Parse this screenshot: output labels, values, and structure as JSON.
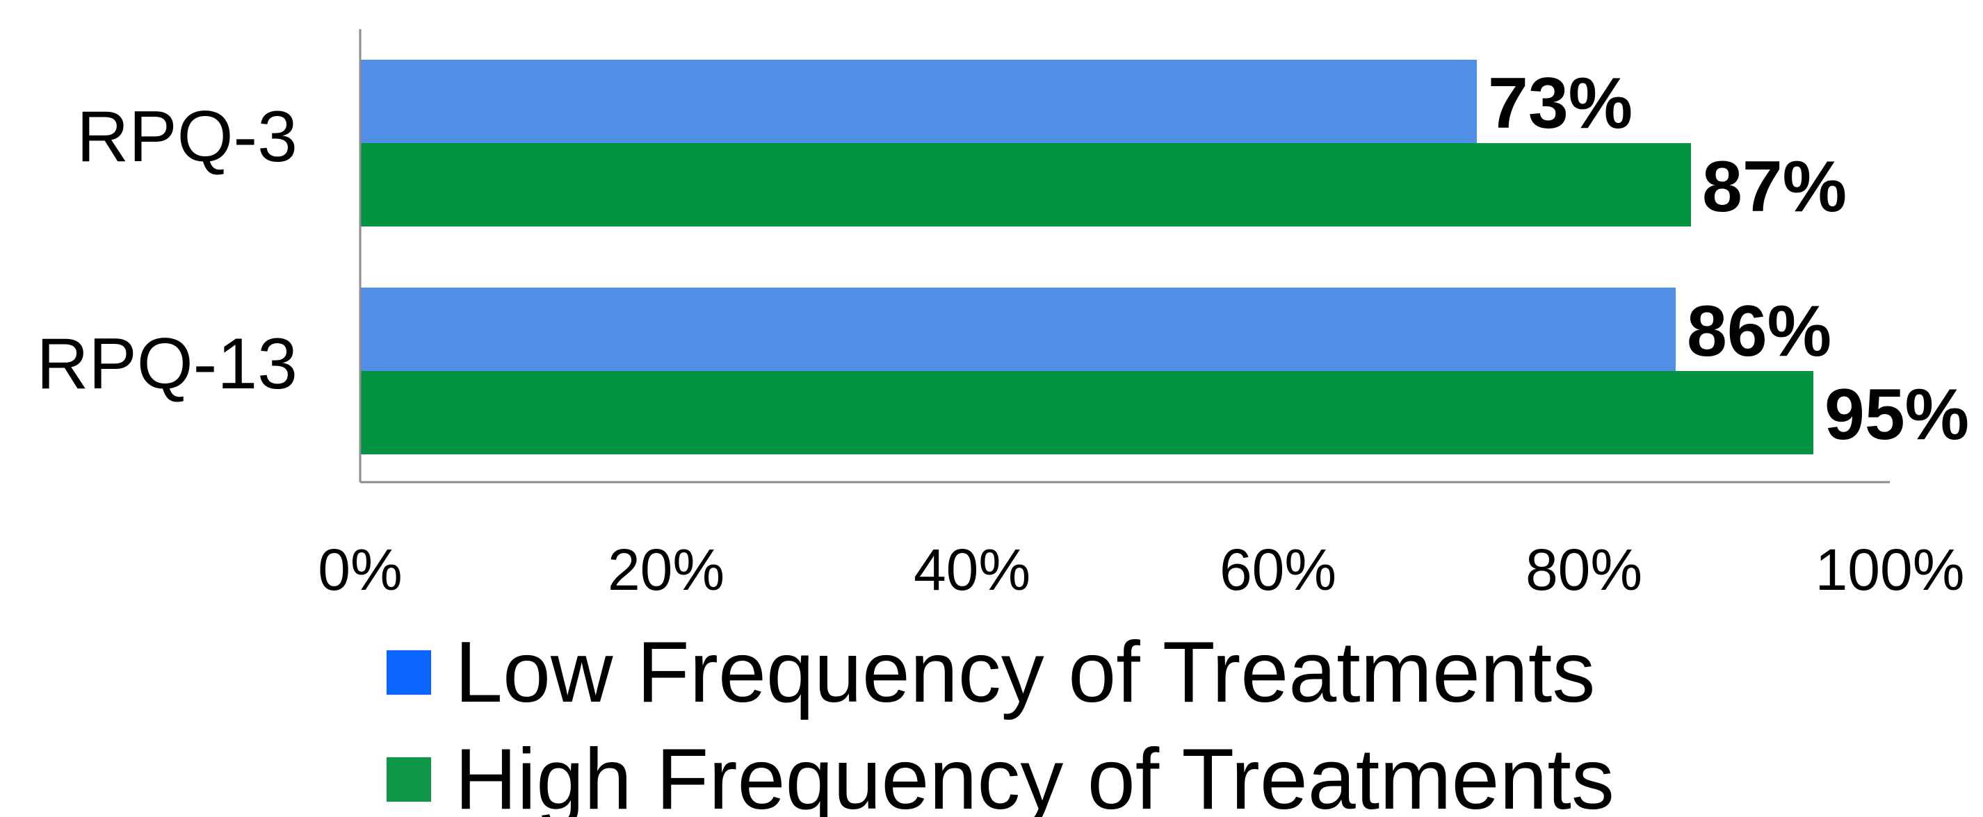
{
  "chart_data": {
    "type": "bar",
    "orientation": "horizontal",
    "categories": [
      "RPQ-3",
      "RPQ-13"
    ],
    "series": [
      {
        "name": "Low Frequency of Treatments",
        "values": [
          73,
          86
        ],
        "labels": [
          "73%",
          "86%"
        ],
        "color": "#518fe6"
      },
      {
        "name": "High Frequency of Treatments",
        "values": [
          87,
          95
        ],
        "labels": [
          "87%",
          "95%"
        ],
        "color": "#039443"
      }
    ],
    "x_ticks": [
      0,
      20,
      40,
      60,
      80,
      100
    ],
    "x_tick_labels": [
      "0%",
      "20%",
      "40%",
      "60%",
      "80%",
      "100%"
    ],
    "xlim": [
      0,
      100
    ],
    "title": "",
    "xlabel": "",
    "ylabel": "",
    "grid": false,
    "legend": {
      "position": "bottom",
      "swatch_colors": [
        "#0a66ff",
        "#0f9647"
      ]
    }
  }
}
